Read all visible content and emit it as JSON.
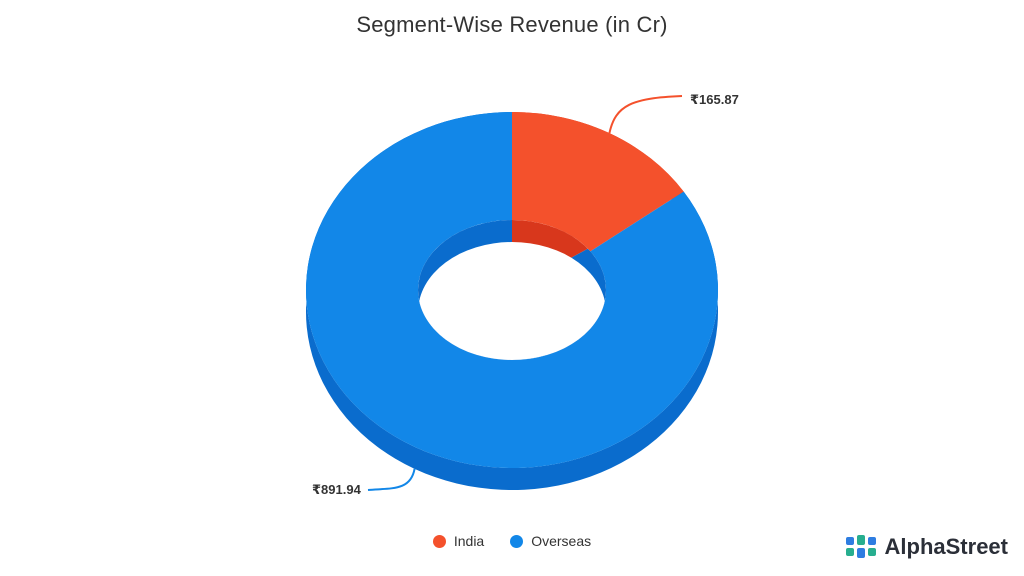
{
  "brand": {
    "name": "AlphaStreet"
  },
  "colors": {
    "India": "#f4512c",
    "India_dark": "#d8371c",
    "Overseas": "#1287e8",
    "Overseas_dark": "#0a6ccd"
  },
  "chart_data": {
    "type": "pie",
    "title": "Segment-Wise Revenue (in Cr)",
    "slices": [
      {
        "label": "India",
        "value": 165.87,
        "data_label": "₹165.87"
      },
      {
        "label": "Overseas",
        "value": 891.94,
        "data_label": "₹891.94"
      }
    ],
    "legend": [
      {
        "label": "India",
        "color": "#f4512c"
      },
      {
        "label": "Overseas",
        "color": "#1287e8"
      }
    ],
    "legend_placement": "bottom"
  }
}
